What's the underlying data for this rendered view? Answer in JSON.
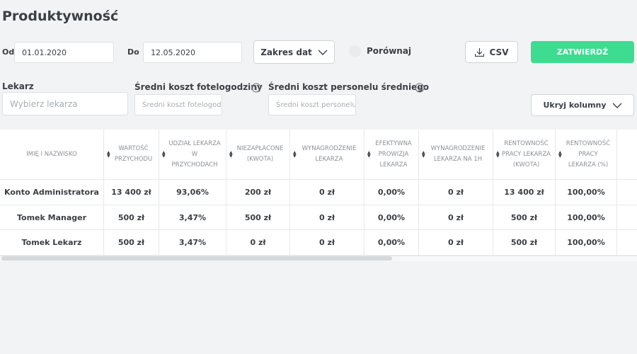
{
  "header": {
    "title": "Produktywność"
  },
  "filters": {
    "from_label": "Od",
    "from_value": "01.01.2020",
    "to_label": "Do",
    "to_value": "12.05.2020",
    "range_button": "Zakres dat",
    "compare_label": "Porównaj",
    "csv_button": "CSV",
    "submit_button": "ZATWIERDŹ"
  },
  "fields": {
    "doctor_label": "Lekarz",
    "doctor_placeholder": "Wybierz lekarza",
    "chair_cost_label": "Średni koszt fotelogodziny",
    "chair_cost_placeholder": "Średni koszt fotelogodziny",
    "staff_cost_label": "Średni koszt personelu średniego",
    "staff_cost_placeholder": "Średni koszt personelu średniego",
    "hide_columns_button": "Ukryj kolumny"
  },
  "table": {
    "columns": [
      "IMIĘ I NAZWISKO",
      "WARTOŚĆ PRZYCHODU",
      "UDZIAŁ LEKARZA W PRZYCHODACH",
      "NIEZAPŁACONE (KWOTA)",
      "WYNAGRODZENIE LEKARZA",
      "EFEKTYWNA PROWIZJA LEKARZA",
      "WYNAGRODZENIE LEKARZA NA 1H",
      "RENTOWNOŚĆ PRACY LEKARZA (KWOTA)",
      "RENTOWNOŚĆ PRACY LEKARZA (%)"
    ],
    "rows": [
      [
        "Konto Administratora",
        "13 400 zł",
        "93,06%",
        "200 zł",
        "0 zł",
        "0,00%",
        "0 zł",
        "13 400 zł",
        "100,00%"
      ],
      [
        "Tomek Manager",
        "500 zł",
        "3,47%",
        "500 zł",
        "0 zł",
        "0,00%",
        "0 zł",
        "500 zł",
        "100,00%"
      ],
      [
        "Tomek Lekarz",
        "500 zł",
        "3,47%",
        "0 zł",
        "0 zł",
        "0,00%",
        "0 zł",
        "500 zł",
        "100,00%"
      ]
    ]
  }
}
